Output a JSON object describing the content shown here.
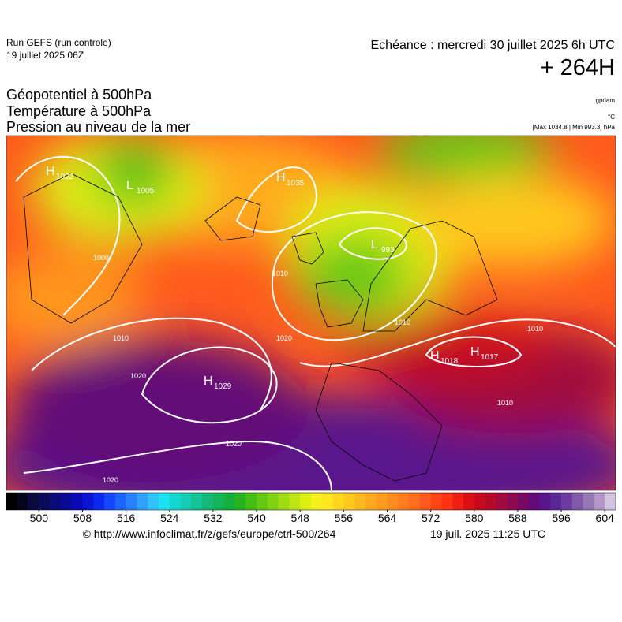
{
  "header": {
    "run": "Run GEFS (run controle)",
    "run_date": "19 juillet 2025 06Z",
    "valid": "Echéance : mercredi 30 juillet 2025 6h UTC",
    "lead": "+ 264H",
    "titles": [
      "Géopotentiel à 500hPa",
      "Température à 500hPa",
      "Pression au niveau de la mer"
    ],
    "units": [
      "gpdam",
      "°C",
      "[Max 1034.8 | Min 993.3] hPa"
    ]
  },
  "map": {
    "centers": [
      {
        "letter": "H",
        "value": 1022
      },
      {
        "letter": "L",
        "value": 1005
      },
      {
        "letter": "H",
        "value": 1035
      },
      {
        "letter": "L",
        "value": 993
      },
      {
        "letter": "H",
        "value": 1029
      },
      {
        "letter": "H",
        "value": 1018
      },
      {
        "letter": "H",
        "value": 1017
      }
    ],
    "contour_labels": [
      1000,
      1010,
      1010,
      1020,
      1020,
      1020,
      1020,
      1010,
      1010,
      1010
    ]
  },
  "colorbar": {
    "range": [
      494,
      606
    ],
    "ticks": [
      500,
      508,
      516,
      524,
      532,
      540,
      548,
      556,
      564,
      572,
      580,
      588,
      596,
      604
    ],
    "colors": [
      "#000000",
      "#050520",
      "#0a0a3c",
      "#0a0a5a",
      "#0a0a78",
      "#0a0a96",
      "#0a0ab4",
      "#0a14d2",
      "#0a28f0",
      "#1446ff",
      "#1e64ff",
      "#2882ff",
      "#32a0ff",
      "#32c3ff",
      "#1ee1f0",
      "#14d7d2",
      "#14cdb4",
      "#14c396",
      "#14b978",
      "#14b45a",
      "#14af3c",
      "#28b41e",
      "#46be14",
      "#64c814",
      "#82d214",
      "#a0dc14",
      "#bee614",
      "#dcf014",
      "#f5f01e",
      "#ffe61e",
      "#ffd71e",
      "#ffc81e",
      "#ffb91e",
      "#ffaa1e",
      "#ff9b1e",
      "#ff8c1e",
      "#ff7d1e",
      "#ff6e1e",
      "#ff5a1e",
      "#ff4614",
      "#ff3214",
      "#f01e14",
      "#dc0f14",
      "#c80a1e",
      "#b40a28",
      "#a00a3c",
      "#8c0a50",
      "#780a64",
      "#640a78",
      "#5a148c",
      "#5a2896",
      "#6e3ca0",
      "#825aaa",
      "#9678b4",
      "#b496c8",
      "#d2c3e1"
    ]
  },
  "footer": {
    "url": "© http://www.infoclimat.fr/z/gefs/europe/ctrl-500/264",
    "issued": "19 juil. 2025 11:25 UTC"
  }
}
